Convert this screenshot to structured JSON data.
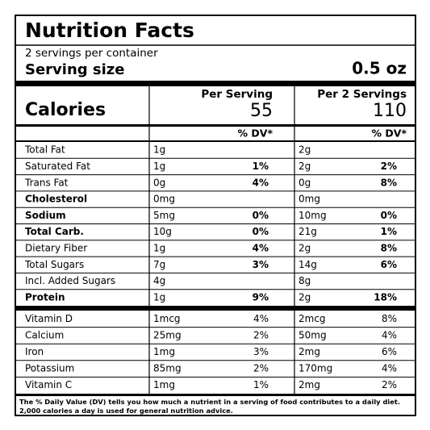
{
  "title": "Nutrition Facts",
  "servings": "2 servings per container",
  "serving_size_label": "Serving size",
  "serving_size": "0.5 oz",
  "calories_label": "Calories",
  "columns": [
    {
      "header": "Per Serving",
      "calories": 55,
      "dv_header": "% DV*"
    },
    {
      "header": "Per 2 Servings",
      "calories": 110,
      "dv_header": "% DV*"
    }
  ],
  "nutrients": [
    {
      "name": "Total Fat",
      "cells": [
        {
          "amount": "1g"
        },
        {
          "amount": "2g"
        }
      ]
    },
    {
      "name": "Saturated Fat",
      "cells": [
        {
          "amount": "1g",
          "dv": "1%"
        },
        {
          "amount": "2g",
          "dv": "2%"
        }
      ]
    },
    {
      "name": "Trans Fat",
      "cells": [
        {
          "amount": "0g",
          "dv": "4%"
        },
        {
          "amount": "0g",
          "dv": "8%"
        }
      ]
    },
    {
      "name": "Cholesterol",
      "bold": true,
      "cells": [
        {
          "amount": "0mg"
        },
        {
          "amount": "0mg"
        }
      ]
    },
    {
      "name": "Sodium",
      "bold": true,
      "cells": [
        {
          "amount": "5mg",
          "dv": "0%"
        },
        {
          "amount": "10mg",
          "dv": "0%"
        }
      ]
    },
    {
      "name": "Total Carb.",
      "bold": true,
      "cells": [
        {
          "amount": "10g",
          "dv": "0%"
        },
        {
          "amount": "21g",
          "dv": "1%"
        }
      ]
    },
    {
      "name": "Dietary Fiber",
      "cells": [
        {
          "amount": "1g",
          "dv": "4%"
        },
        {
          "amount": "2g",
          "dv": "8%"
        }
      ]
    },
    {
      "name": "Total Sugars",
      "cells": [
        {
          "amount": "7g",
          "dv": "3%"
        },
        {
          "amount": "14g",
          "dv": "6%"
        }
      ]
    },
    {
      "name": "Incl. Added Sugars",
      "cells": [
        {
          "amount": "4g"
        },
        {
          "amount": "8g"
        }
      ]
    },
    {
      "name": "Protein",
      "bold": true,
      "cells": [
        {
          "amount": "1g",
          "dv": "9%"
        },
        {
          "amount": "2g",
          "dv": "18%"
        }
      ]
    }
  ],
  "vitamins": [
    {
      "name": "Vitamin D",
      "cells": [
        {
          "amount": "1mcg",
          "dv": "4%"
        },
        {
          "amount": "2mcg",
          "dv": "8%"
        }
      ]
    },
    {
      "name": "Calcium",
      "cells": [
        {
          "amount": "25mg",
          "dv": "2%"
        },
        {
          "amount": "50mg",
          "dv": "4%"
        }
      ]
    },
    {
      "name": "Iron",
      "cells": [
        {
          "amount": "1mg",
          "dv": "3%"
        },
        {
          "amount": "2mg",
          "dv": "6%"
        }
      ]
    },
    {
      "name": "Potassium",
      "cells": [
        {
          "amount": "85mg",
          "dv": "2%"
        },
        {
          "amount": "170mg",
          "dv": "4%"
        }
      ]
    },
    {
      "name": "Vitamin C",
      "cells": [
        {
          "amount": "1mg",
          "dv": "1%"
        },
        {
          "amount": "2mg",
          "dv": "2%"
        }
      ]
    }
  ],
  "footnote": "The % Daily Value (DV) tells you how much a nutrient in a serving of food contributes to a daily diet. 2,000 calories a day is used for general nutrition advice."
}
